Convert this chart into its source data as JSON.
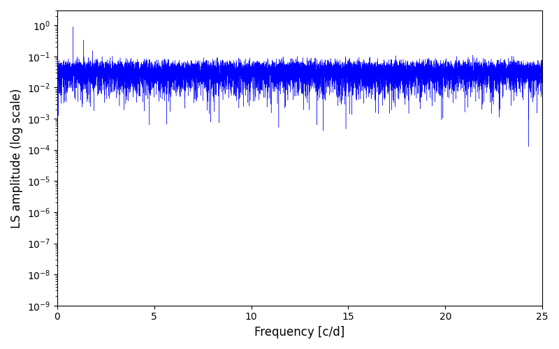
{
  "xlabel": "Frequency [c/d]",
  "ylabel": "LS amplitude (log scale)",
  "line_color": "#0000ff",
  "xlim": [
    0,
    25
  ],
  "ylim_bottom_exp": -9,
  "ylim_top": 3.0,
  "freq_min": 0.0,
  "freq_max": 25.0,
  "n_points": 10000,
  "seed": 42,
  "background_color": "#ffffff",
  "figsize": [
    8.0,
    5.0
  ],
  "dpi": 100
}
